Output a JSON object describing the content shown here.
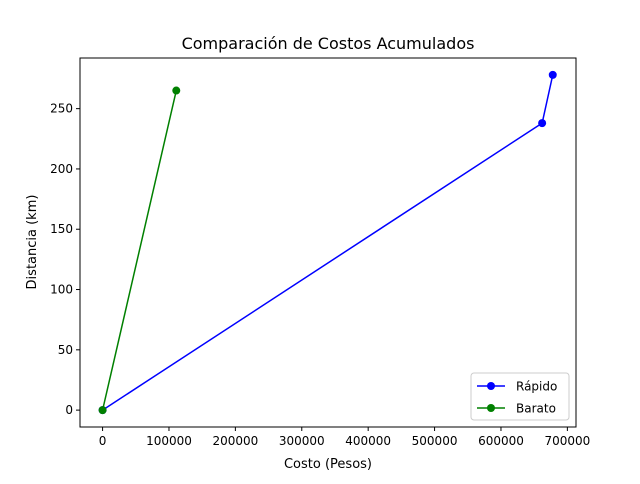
{
  "chart_data": {
    "type": "line",
    "title": "Comparación de Costos Acumulados",
    "xlabel": "Costo (Pesos)",
    "ylabel": "Distancia (km)",
    "xlim": [
      -34000,
      713000
    ],
    "ylim": [
      -14,
      292
    ],
    "x_ticks": [
      0,
      100000,
      200000,
      300000,
      400000,
      500000,
      600000,
      700000
    ],
    "y_ticks": [
      0,
      50,
      100,
      150,
      200,
      250
    ],
    "grid": false,
    "legend_position": "lower-right",
    "series": [
      {
        "name": "Rápido",
        "color": "#0000ff",
        "marker": "circle",
        "points": [
          [
            0,
            0
          ],
          [
            662000,
            238
          ],
          [
            678000,
            278
          ]
        ]
      },
      {
        "name": "Barato",
        "color": "#008000",
        "marker": "circle",
        "points": [
          [
            0,
            0
          ],
          [
            111000,
            265
          ]
        ]
      }
    ]
  }
}
